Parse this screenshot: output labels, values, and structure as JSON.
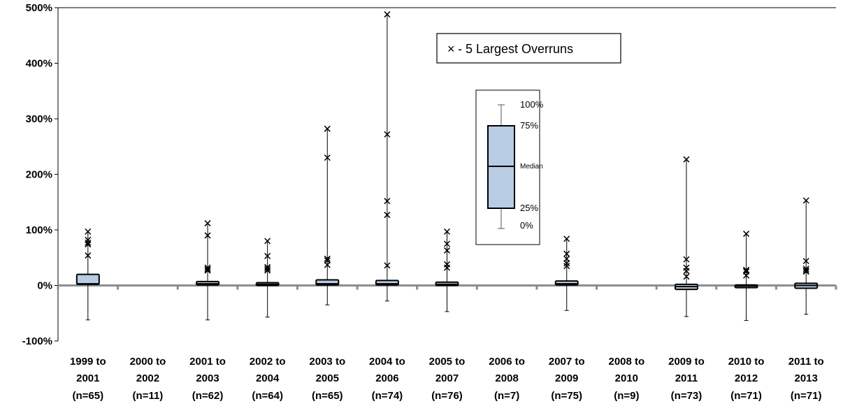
{
  "chart_data": {
    "type": "box",
    "ylim": [
      -100,
      500
    ],
    "yticks": [
      -100,
      0,
      100,
      200,
      300,
      400,
      500
    ],
    "ytick_labels": [
      "-100%",
      "0%",
      "100%",
      "200%",
      "300%",
      "400%",
      "500%"
    ],
    "gridlines": false,
    "categories": [
      {
        "line1": "1999 to",
        "line2": "2001",
        "n": "(n=65)"
      },
      {
        "line1": "2000 to",
        "line2": "2002",
        "n": "(n=11)"
      },
      {
        "line1": "2001 to",
        "line2": "2003",
        "n": "(n=62)"
      },
      {
        "line1": "2002 to",
        "line2": "2004",
        "n": "(n=64)"
      },
      {
        "line1": "2003 to",
        "line2": "2005",
        "n": "(n=65)"
      },
      {
        "line1": "2004 to",
        "line2": "2006",
        "n": "(n=74)"
      },
      {
        "line1": "2005 to",
        "line2": "2007",
        "n": "(n=76)"
      },
      {
        "line1": "2006 to",
        "line2": "2008",
        "n": "(n=7)"
      },
      {
        "line1": "2007 to",
        "line2": "2009",
        "n": "(n=75)"
      },
      {
        "line1": "2008 to",
        "line2": "2010",
        "n": "(n=9)"
      },
      {
        "line1": "2009 to",
        "line2": "2011",
        "n": "(n=73)"
      },
      {
        "line1": "2010 to",
        "line2": "2012",
        "n": "(n=71)"
      },
      {
        "line1": "2011 to",
        "line2": "2013",
        "n": "(n=71)"
      }
    ],
    "boxes": [
      {
        "min": -62,
        "q1": 2,
        "median": 3,
        "q3": 20,
        "max": 97,
        "overruns": [
          97,
          82,
          77,
          74,
          54
        ]
      },
      null,
      {
        "min": -62,
        "q1": 1,
        "median": 3,
        "q3": 7,
        "max": 112,
        "overruns": [
          112,
          90,
          32,
          29,
          27
        ]
      },
      {
        "min": -57,
        "q1": 0,
        "median": 2,
        "q3": 5,
        "max": 80,
        "overruns": [
          80,
          53,
          33,
          30,
          27
        ]
      },
      {
        "min": -35,
        "q1": 1,
        "median": 3,
        "q3": 10,
        "max": 282,
        "overruns": [
          282,
          230,
          48,
          45,
          37
        ]
      },
      {
        "min": -28,
        "q1": 1,
        "median": 3,
        "q3": 9,
        "max": 488,
        "overruns": [
          488,
          272,
          152,
          127,
          36
        ]
      },
      {
        "min": -47,
        "q1": 0,
        "median": 2,
        "q3": 6,
        "max": 97,
        "overruns": [
          97,
          75,
          63,
          38,
          32
        ]
      },
      null,
      {
        "min": -45,
        "q1": 1,
        "median": 3,
        "q3": 8,
        "max": 84,
        "overruns": [
          84,
          57,
          48,
          40,
          35
        ]
      },
      null,
      {
        "min": -56,
        "q1": -7,
        "median": -2,
        "q3": 2,
        "max": 227,
        "overruns": [
          227,
          47,
          32,
          26,
          16
        ]
      },
      {
        "min": -63,
        "q1": -4,
        "median": -1,
        "q3": 1,
        "max": 93,
        "overruns": [
          93,
          28,
          27,
          25,
          18
        ]
      },
      {
        "min": -52,
        "q1": -5,
        "median": 0,
        "q3": 4,
        "max": 153,
        "overruns": [
          153,
          44,
          30,
          27,
          25
        ]
      }
    ],
    "colors": {
      "box_fill": "#b8cce4",
      "box_stroke": "#000000",
      "zero_line": "#8c8c8c"
    },
    "legend": {
      "marker": "×",
      "text": "- 5 Largest  Overruns"
    },
    "key": {
      "top": "100%",
      "q3": "75%",
      "median": "Median",
      "q1": "25%",
      "bottom": "0%"
    }
  }
}
